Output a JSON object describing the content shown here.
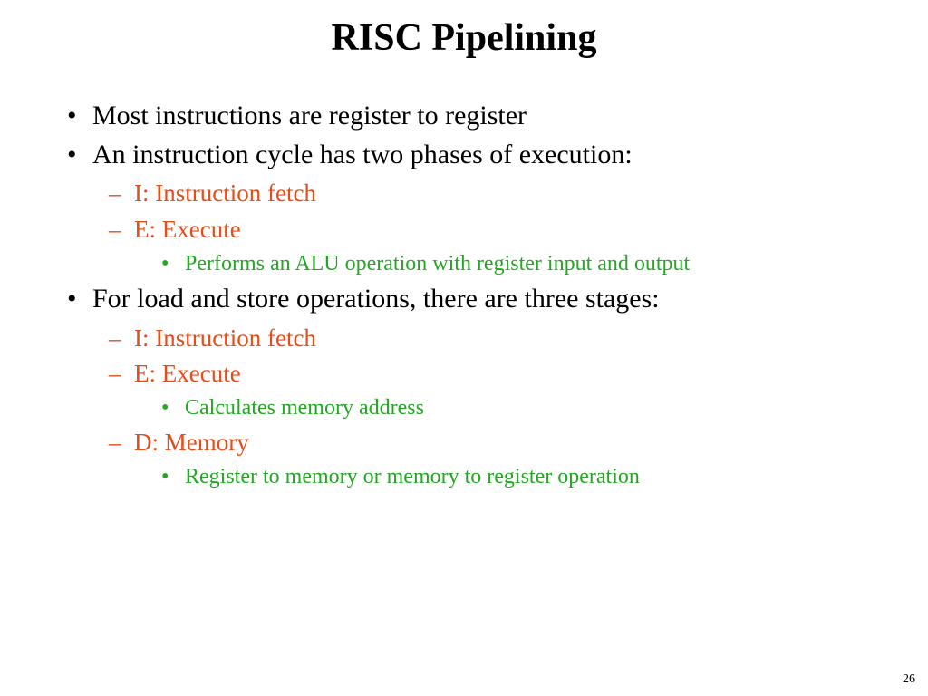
{
  "title": "RISC Pipelining",
  "title_fontsize": 42,
  "colors": {
    "text": "#000000",
    "accent_orange": "#e64d1a",
    "accent_green": "#23a823",
    "background": "#ffffff"
  },
  "fontsize": {
    "lvl1": 30,
    "lvl2": 27,
    "lvl3": 24,
    "pagenum": 14
  },
  "bullets": [
    {
      "text": "Most instructions are register to register"
    },
    {
      "text": "An instruction cycle has two phases of execution:",
      "sub": [
        {
          "text": "I: Instruction fetch"
        },
        {
          "text": "E: Execute",
          "sub": [
            {
              "text": "Performs an ALU operation with register input and output"
            }
          ]
        }
      ]
    },
    {
      "text": "For load and store operations, there are three stages:",
      "sub": [
        {
          "text": "I: Instruction fetch"
        },
        {
          "text": "E: Execute",
          "sub": [
            {
              "text": "Calculates memory address"
            }
          ]
        },
        {
          "text": "D: Memory",
          "sub": [
            {
              "text": "Register to memory or memory to register operation"
            }
          ]
        }
      ]
    }
  ],
  "page_number": "26"
}
